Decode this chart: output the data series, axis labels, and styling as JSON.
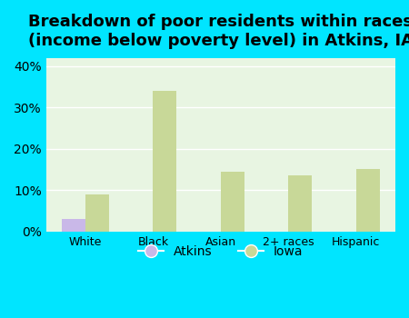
{
  "title": "Breakdown of poor residents within races\n(income below poverty level) in Atkins, IA",
  "categories": [
    "White",
    "Black",
    "Asian",
    "2+ races",
    "Hispanic"
  ],
  "atkins_values": [
    3.0,
    0.0,
    0.0,
    0.0,
    0.0
  ],
  "iowa_values": [
    9.0,
    34.0,
    14.5,
    13.5,
    15.0
  ],
  "atkins_color": "#c9b8e8",
  "iowa_color": "#c8d898",
  "background_color": "#00e5ff",
  "plot_bg_color": "#e8f5e2",
  "ylim": [
    0,
    42
  ],
  "yticks": [
    0,
    10,
    20,
    30,
    40
  ],
  "bar_width": 0.35,
  "title_fontsize": 13,
  "legend_atkins_color": "#c9b8e8",
  "legend_iowa_color": "#c8d898"
}
